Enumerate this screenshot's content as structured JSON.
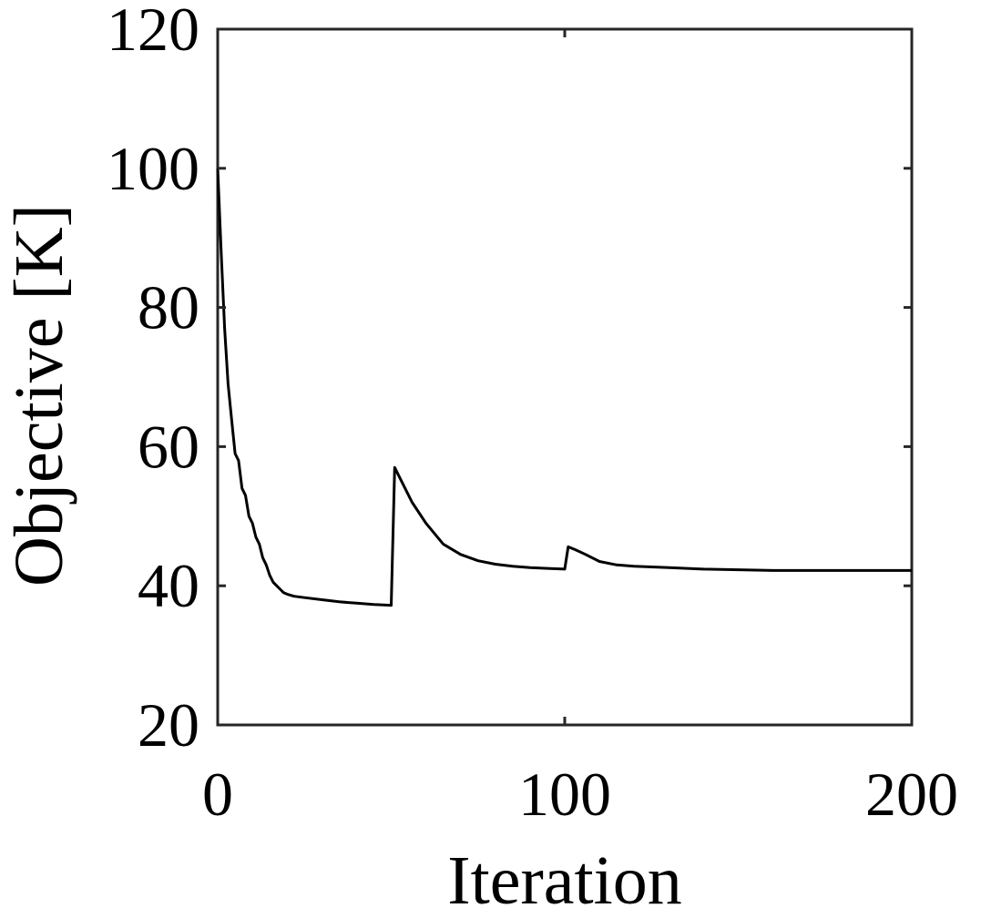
{
  "chart_data": {
    "type": "line",
    "title": "",
    "xlabel": "Iteration",
    "ylabel": "Objective [K]",
    "xlim": [
      0,
      200
    ],
    "ylim": [
      20,
      120
    ],
    "xticks": [
      0,
      100,
      200
    ],
    "yticks": [
      20,
      40,
      60,
      80,
      100,
      120
    ],
    "grid": false,
    "legend": "none",
    "line_color": "#000000",
    "series": [
      {
        "x": [
          0,
          1,
          2,
          3,
          4,
          5,
          6,
          7,
          8,
          9,
          10,
          11,
          12,
          13,
          14,
          15,
          16,
          17,
          18,
          19,
          20,
          22,
          25,
          30,
          35,
          40,
          45,
          50,
          51,
          53,
          56,
          60,
          65,
          70,
          75,
          80,
          85,
          90,
          95,
          100,
          101,
          103,
          106,
          110,
          115,
          120,
          130,
          140,
          150,
          160,
          170,
          180,
          190,
          200
        ],
        "y": [
          100,
          88,
          77,
          69,
          64,
          59,
          58,
          54,
          53,
          50,
          49,
          47,
          46,
          44,
          43,
          41.5,
          40.5,
          40,
          39.5,
          39,
          38.8,
          38.5,
          38.3,
          38,
          37.7,
          37.5,
          37.3,
          37.2,
          57,
          55,
          52,
          49,
          46,
          44.5,
          43.6,
          43.1,
          42.8,
          42.6,
          42.5,
          42.4,
          45.6,
          45.2,
          44.5,
          43.5,
          43,
          42.8,
          42.6,
          42.4,
          42.3,
          42.2,
          42.2,
          42.2,
          42.2,
          42.2
        ]
      }
    ]
  }
}
